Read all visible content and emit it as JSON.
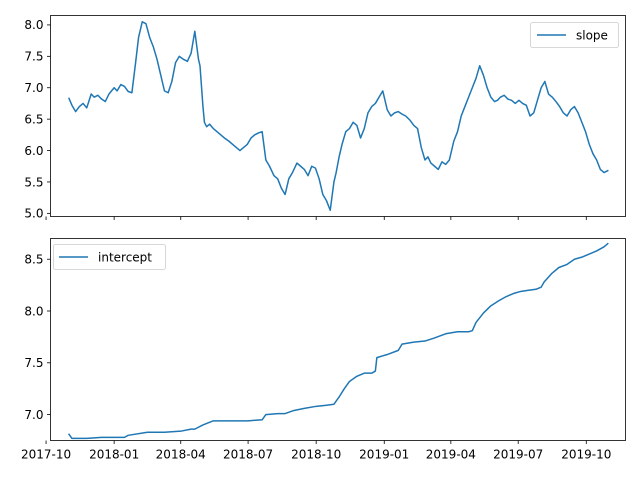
{
  "figure": {
    "background": "#ffffff",
    "line_color": "#1f77b4"
  },
  "chart_data": [
    {
      "type": "line",
      "title": "",
      "xlabel": "",
      "ylabel": "",
      "ylim": [
        4.95,
        8.15
      ],
      "yticks": [
        "5.0",
        "5.5",
        "6.0",
        "6.5",
        "7.0",
        "7.5",
        "8.0"
      ],
      "xtick_labels_visible": false,
      "legend": {
        "entries": [
          "slope"
        ],
        "placement": "upper right"
      },
      "grid": false,
      "series": [
        {
          "name": "slope",
          "color": "#1f77b4",
          "x": [
            "2017-11-01",
            "2017-11-05",
            "2017-11-10",
            "2017-11-15",
            "2017-11-20",
            "2017-11-25",
            "2017-12-01",
            "2017-12-05",
            "2017-12-10",
            "2017-12-15",
            "2017-12-20",
            "2017-12-25",
            "2018-01-01",
            "2018-01-05",
            "2018-01-10",
            "2018-01-15",
            "2018-01-20",
            "2018-01-25",
            "2018-01-30",
            "2018-02-03",
            "2018-02-08",
            "2018-02-13",
            "2018-02-18",
            "2018-02-23",
            "2018-02-28",
            "2018-03-05",
            "2018-03-10",
            "2018-03-15",
            "2018-03-20",
            "2018-03-25",
            "2018-03-30",
            "2018-04-05",
            "2018-04-10",
            "2018-04-15",
            "2018-04-20",
            "2018-04-25",
            "2018-04-27",
            "2018-05-01",
            "2018-05-03",
            "2018-05-06",
            "2018-05-10",
            "2018-05-15",
            "2018-05-20",
            "2018-05-25",
            "2018-05-30",
            "2018-06-05",
            "2018-06-10",
            "2018-06-15",
            "2018-06-20",
            "2018-06-25",
            "2018-06-30",
            "2018-07-05",
            "2018-07-10",
            "2018-07-15",
            "2018-07-20",
            "2018-07-25",
            "2018-07-30",
            "2018-08-05",
            "2018-08-10",
            "2018-08-15",
            "2018-08-20",
            "2018-08-25",
            "2018-08-30",
            "2018-09-05",
            "2018-09-10",
            "2018-09-15",
            "2018-09-20",
            "2018-09-25",
            "2018-09-30",
            "2018-10-05",
            "2018-10-10",
            "2018-10-15",
            "2018-10-20",
            "2018-10-25",
            "2018-10-28",
            "2018-11-01",
            "2018-11-05",
            "2018-11-10",
            "2018-11-15",
            "2018-11-20",
            "2018-11-25",
            "2018-11-30",
            "2018-12-05",
            "2018-12-10",
            "2018-12-15",
            "2018-12-20",
            "2018-12-25",
            "2018-12-30",
            "2019-01-05",
            "2019-01-10",
            "2019-01-15",
            "2019-01-20",
            "2019-01-25",
            "2019-01-30",
            "2019-02-05",
            "2019-02-10",
            "2019-02-15",
            "2019-02-20",
            "2019-02-25",
            "2019-03-01",
            "2019-03-05",
            "2019-03-10",
            "2019-03-15",
            "2019-03-20",
            "2019-03-25",
            "2019-03-30",
            "2019-04-05",
            "2019-04-10",
            "2019-04-15",
            "2019-04-20",
            "2019-04-25",
            "2019-04-30",
            "2019-05-05",
            "2019-05-10",
            "2019-05-15",
            "2019-05-20",
            "2019-05-25",
            "2019-05-30",
            "2019-06-03",
            "2019-06-07",
            "2019-06-12",
            "2019-06-17",
            "2019-06-22",
            "2019-06-27",
            "2019-07-02",
            "2019-07-07",
            "2019-07-12",
            "2019-07-17",
            "2019-07-22",
            "2019-07-27",
            "2019-08-01",
            "2019-08-06",
            "2019-08-11",
            "2019-08-16",
            "2019-08-21",
            "2019-08-26",
            "2019-08-31",
            "2019-09-05",
            "2019-09-10",
            "2019-09-15",
            "2019-09-20",
            "2019-09-25",
            "2019-09-30",
            "2019-10-05",
            "2019-10-10",
            "2019-10-15",
            "2019-10-20",
            "2019-10-25",
            "2019-10-30"
          ],
          "y": [
            6.83,
            6.72,
            6.62,
            6.7,
            6.75,
            6.68,
            6.9,
            6.85,
            6.88,
            6.82,
            6.78,
            6.9,
            7.0,
            6.95,
            7.05,
            7.02,
            6.94,
            6.92,
            7.4,
            7.8,
            8.05,
            8.02,
            7.8,
            7.65,
            7.45,
            7.2,
            6.95,
            6.92,
            7.1,
            7.4,
            7.5,
            7.45,
            7.42,
            7.55,
            7.9,
            7.45,
            7.35,
            6.7,
            6.45,
            6.38,
            6.42,
            6.35,
            6.3,
            6.25,
            6.2,
            6.15,
            6.1,
            6.05,
            6.0,
            6.05,
            6.1,
            6.2,
            6.25,
            6.28,
            6.3,
            5.85,
            5.75,
            5.6,
            5.55,
            5.4,
            5.3,
            5.55,
            5.65,
            5.8,
            5.75,
            5.7,
            5.6,
            5.75,
            5.72,
            5.55,
            5.3,
            5.2,
            5.05,
            5.5,
            5.65,
            5.9,
            6.1,
            6.3,
            6.35,
            6.45,
            6.4,
            6.2,
            6.35,
            6.6,
            6.7,
            6.75,
            6.85,
            6.95,
            6.65,
            6.55,
            6.6,
            6.62,
            6.58,
            6.55,
            6.48,
            6.4,
            6.35,
            6.05,
            5.85,
            5.9,
            5.8,
            5.75,
            5.7,
            5.82,
            5.78,
            5.85,
            6.15,
            6.3,
            6.55,
            6.7,
            6.85,
            7.0,
            7.15,
            7.35,
            7.2,
            7.0,
            6.85,
            6.78,
            6.8,
            6.85,
            6.88,
            6.82,
            6.8,
            6.75,
            6.8,
            6.75,
            6.72,
            6.55,
            6.6,
            6.8,
            7.0,
            7.1,
            6.9,
            6.85,
            6.78,
            6.7,
            6.6,
            6.55,
            6.65,
            6.7,
            6.6,
            6.45,
            6.3,
            6.1,
            5.95,
            5.85,
            5.7,
            5.65,
            5.68
          ]
        }
      ]
    },
    {
      "type": "line",
      "title": "",
      "xlabel": "",
      "ylabel": "",
      "ylim": [
        6.75,
        8.7
      ],
      "yticks": [
        "7.0",
        "7.5",
        "8.0",
        "8.5"
      ],
      "xticks": [
        "2017-10",
        "2018-01",
        "2018-04",
        "2018-07",
        "2018-10",
        "2019-01",
        "2019-04",
        "2019-07",
        "2019-10"
      ],
      "legend": {
        "entries": [
          "intercept"
        ],
        "placement": "upper left"
      },
      "grid": false,
      "series": [
        {
          "name": "intercept",
          "color": "#1f77b4",
          "x": [
            "2017-11-01",
            "2017-11-05",
            "2017-11-25",
            "2017-12-15",
            "2018-01-05",
            "2018-01-15",
            "2018-01-20",
            "2018-02-15",
            "2018-03-01",
            "2018-03-10",
            "2018-04-01",
            "2018-04-15",
            "2018-04-20",
            "2018-05-01",
            "2018-05-15",
            "2018-06-01",
            "2018-06-15",
            "2018-07-01",
            "2018-07-20",
            "2018-07-25",
            "2018-08-10",
            "2018-08-20",
            "2018-09-01",
            "2018-09-15",
            "2018-10-01",
            "2018-10-15",
            "2018-10-25",
            "2018-11-01",
            "2018-11-08",
            "2018-11-15",
            "2018-11-25",
            "2018-12-05",
            "2018-12-15",
            "2018-12-20",
            "2018-12-22",
            "2019-01-05",
            "2019-01-20",
            "2019-01-25",
            "2019-02-10",
            "2019-02-25",
            "2019-03-10",
            "2019-03-25",
            "2019-04-10",
            "2019-04-25",
            "2019-04-30",
            "2019-05-05",
            "2019-05-15",
            "2019-05-25",
            "2019-06-05",
            "2019-06-15",
            "2019-06-25",
            "2019-07-05",
            "2019-07-15",
            "2019-07-25",
            "2019-08-01",
            "2019-08-05",
            "2019-08-15",
            "2019-08-25",
            "2019-09-05",
            "2019-09-15",
            "2019-09-25",
            "2019-10-05",
            "2019-10-15",
            "2019-10-25",
            "2019-10-30"
          ],
          "y": [
            6.81,
            6.77,
            6.77,
            6.78,
            6.78,
            6.78,
            6.8,
            6.83,
            6.83,
            6.83,
            6.84,
            6.86,
            6.86,
            6.9,
            6.94,
            6.94,
            6.94,
            6.94,
            6.95,
            7.0,
            7.01,
            7.01,
            7.04,
            7.06,
            7.08,
            7.09,
            7.1,
            7.17,
            7.25,
            7.32,
            7.37,
            7.4,
            7.4,
            7.42,
            7.55,
            7.58,
            7.62,
            7.68,
            7.7,
            7.71,
            7.74,
            7.78,
            7.8,
            7.8,
            7.81,
            7.89,
            7.98,
            8.05,
            8.1,
            8.14,
            8.17,
            8.19,
            8.2,
            8.21,
            8.23,
            8.28,
            8.36,
            8.42,
            8.45,
            8.5,
            8.52,
            8.55,
            8.58,
            8.62,
            8.65
          ]
        }
      ]
    }
  ]
}
